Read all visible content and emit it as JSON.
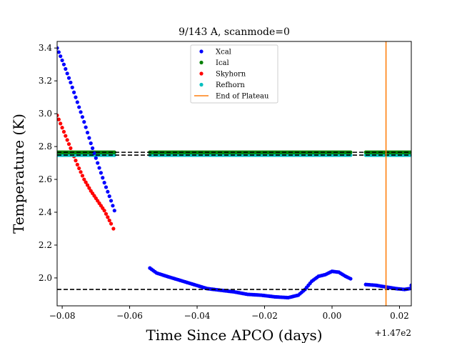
{
  "chart_data": {
    "type": "scatter",
    "title": "9/143 A, scanmode=0",
    "xlabel": "Time Since APCO (days)",
    "ylabel": "Temperature (K)",
    "x_offset_label": "+1.47e2",
    "xlim": [
      -0.0815,
      0.0235
    ],
    "ylim": [
      1.83,
      3.44
    ],
    "xticks": [
      -0.08,
      -0.06,
      -0.04,
      -0.02,
      0.0,
      0.02
    ],
    "xtick_labels": [
      "−0.08",
      "−0.06",
      "−0.04",
      "−0.02",
      "0.00",
      "0.02"
    ],
    "yticks": [
      2.0,
      2.2,
      2.4,
      2.6,
      2.8,
      3.0,
      3.2,
      3.4
    ],
    "ytick_labels": [
      "2.0",
      "2.2",
      "2.4",
      "2.6",
      "2.8",
      "3.0",
      "3.2",
      "3.4"
    ],
    "grid": false,
    "legend_position": "top-center",
    "colors": {
      "xcal": "#0000ff",
      "ical": "#008000",
      "skyhorn": "#ff0000",
      "refhorn": "#00bfbf",
      "end_of_plateau": "#ff7f0e",
      "plateau_lines": "#000000"
    },
    "series": [
      {
        "name": "Xcal",
        "segments": [
          [
            [
              -0.0815,
              3.4
            ],
            [
              -0.0795,
              3.3
            ],
            [
              -0.0775,
              3.19
            ],
            [
              -0.0755,
              3.07
            ],
            [
              -0.0735,
              2.95
            ],
            [
              -0.0715,
              2.82
            ],
            [
              -0.0695,
              2.7
            ],
            [
              -0.0675,
              2.58
            ],
            [
              -0.0655,
              2.47
            ],
            [
              -0.0645,
              2.41
            ]
          ],
          [
            [
              -0.054,
              2.06
            ],
            [
              -0.052,
              2.03
            ],
            [
              -0.049,
              2.01
            ],
            [
              -0.045,
              1.985
            ],
            [
              -0.041,
              1.96
            ],
            [
              -0.037,
              1.935
            ],
            [
              -0.033,
              1.925
            ],
            [
              -0.029,
              1.915
            ],
            [
              -0.025,
              1.9
            ],
            [
              -0.021,
              1.895
            ],
            [
              -0.017,
              1.885
            ],
            [
              -0.013,
              1.88
            ],
            [
              -0.01,
              1.895
            ],
            [
              -0.008,
              1.93
            ],
            [
              -0.006,
              1.98
            ],
            [
              -0.004,
              2.01
            ],
            [
              -0.002,
              2.02
            ],
            [
              0.0,
              2.04
            ],
            [
              0.002,
              2.035
            ],
            [
              0.004,
              2.01
            ],
            [
              0.0055,
              1.995
            ]
          ],
          [
            [
              0.01,
              1.96
            ],
            [
              0.013,
              1.955
            ],
            [
              0.016,
              1.945
            ],
            [
              0.019,
              1.935
            ],
            [
              0.0215,
              1.93
            ],
            [
              0.023,
              1.935
            ],
            [
              0.0235,
              1.955
            ]
          ]
        ]
      },
      {
        "name": "Ical",
        "segments": [
          [
            [
              -0.0815,
              2.765
            ],
            [
              -0.0645,
              2.765
            ]
          ],
          [
            [
              -0.054,
              2.765
            ],
            [
              0.0055,
              2.765
            ]
          ],
          [
            [
              0.01,
              2.765
            ],
            [
              0.0235,
              2.765
            ]
          ]
        ]
      },
      {
        "name": "Skyhorn",
        "segments": [
          [
            [
              -0.0815,
              2.99
            ],
            [
              -0.0795,
              2.89
            ],
            [
              -0.0775,
              2.79
            ],
            [
              -0.0755,
              2.69
            ],
            [
              -0.0735,
              2.6
            ],
            [
              -0.0715,
              2.53
            ],
            [
              -0.0695,
              2.47
            ],
            [
              -0.0675,
              2.41
            ],
            [
              -0.0655,
              2.33
            ],
            [
              -0.0648,
              2.3
            ]
          ]
        ]
      },
      {
        "name": "Refhorn",
        "segments": [
          [
            [
              -0.0815,
              2.748
            ],
            [
              -0.0645,
              2.748
            ]
          ],
          [
            [
              -0.054,
              2.748
            ],
            [
              0.0055,
              2.748
            ]
          ],
          [
            [
              0.01,
              2.748
            ],
            [
              0.0235,
              2.748
            ]
          ]
        ]
      }
    ],
    "dashed_lines": [
      {
        "y": 2.765,
        "x": [
          -0.0815,
          0.0235
        ]
      },
      {
        "y": 2.748,
        "x": [
          -0.0815,
          0.0235
        ]
      },
      {
        "y": 1.93,
        "x": [
          -0.0815,
          0.0235
        ]
      }
    ],
    "vertical_lines": [
      {
        "name": "End of Plateau",
        "x": 0.016
      }
    ]
  }
}
